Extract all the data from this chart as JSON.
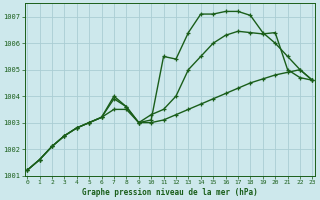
{
  "title": "Graphe pression niveau de la mer (hPa)",
  "background_color": "#cde8ec",
  "grid_color": "#aacdd4",
  "line_color": "#1a5e1a",
  "x_min": 0,
  "x_max": 23,
  "y_min": 1001,
  "y_max": 1007.5,
  "yticks": [
    1001,
    1002,
    1003,
    1004,
    1005,
    1006,
    1007
  ],
  "xticks": [
    0,
    1,
    2,
    3,
    4,
    5,
    6,
    7,
    8,
    9,
    10,
    11,
    12,
    13,
    14,
    15,
    16,
    17,
    18,
    19,
    20,
    21,
    22,
    23
  ],
  "series": [
    [
      1001.2,
      1001.6,
      1002.1,
      1002.5,
      1002.8,
      1003.0,
      1003.2,
      1003.9,
      1003.6,
      1003.0,
      1003.1,
      1005.5,
      1005.4,
      1006.4,
      1007.1,
      1007.1,
      1007.2,
      1007.2,
      1007.05,
      1006.4,
      1006.0,
      1005.5,
      1005.0,
      1004.6
    ],
    [
      1001.2,
      1001.6,
      1002.1,
      1002.5,
      1002.8,
      1003.0,
      1003.2,
      1004.0,
      1003.6,
      1003.0,
      1003.3,
      1003.5,
      1004.0,
      1005.0,
      1005.5,
      1006.0,
      1006.3,
      1006.45,
      1006.4,
      1006.35,
      1006.4,
      1005.0,
      1004.7,
      1004.6
    ],
    [
      1001.2,
      1001.6,
      1002.1,
      1002.5,
      1002.8,
      1003.0,
      1003.2,
      1003.5,
      1003.5,
      1003.0,
      1003.0,
      1003.1,
      1003.3,
      1003.5,
      1003.7,
      1003.9,
      1004.1,
      1004.3,
      1004.5,
      1004.65,
      1004.8,
      1004.9,
      1005.0,
      1004.6
    ]
  ],
  "line_styles": [
    {
      "lw": 1.0,
      "ms": 3.5,
      "marker": "+"
    },
    {
      "lw": 1.0,
      "ms": 3.5,
      "marker": "+"
    },
    {
      "lw": 1.0,
      "ms": 3.5,
      "marker": "+"
    }
  ]
}
